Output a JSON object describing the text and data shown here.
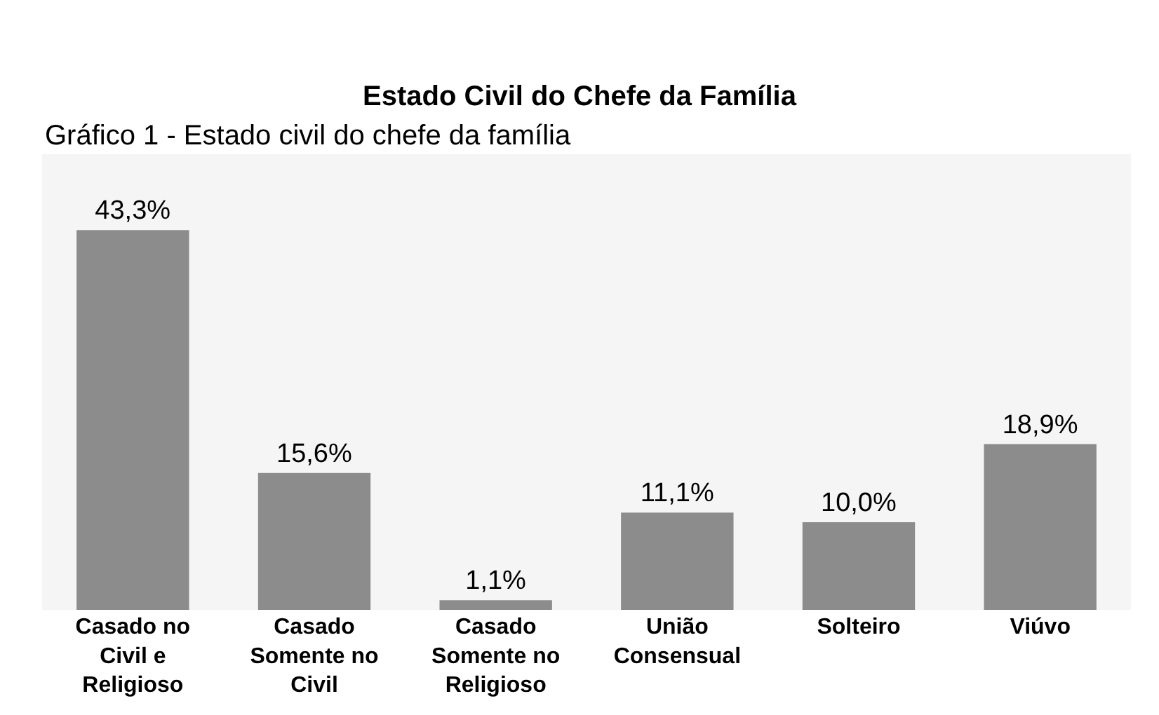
{
  "chart_data": {
    "type": "bar",
    "title": "Estado Civil do Chefe da Família",
    "annotations": [
      "Gráfico 1 - Estado civil do chefe da família"
    ],
    "categories": [
      "Casado no Civil e Religioso",
      "Casado Somente no Civil",
      "Casado Somente no Religioso",
      "União Consensual",
      "Solteiro",
      "Viúvo"
    ],
    "values": [
      43.3,
      15.6,
      1.1,
      11.1,
      10.0,
      18.9
    ],
    "value_labels": [
      "43,3%",
      "15,6%",
      "1,1%",
      "11,1%",
      "10,0%",
      "18,9%"
    ],
    "color": "#8c8c8c",
    "grid": false,
    "legend": false
  }
}
